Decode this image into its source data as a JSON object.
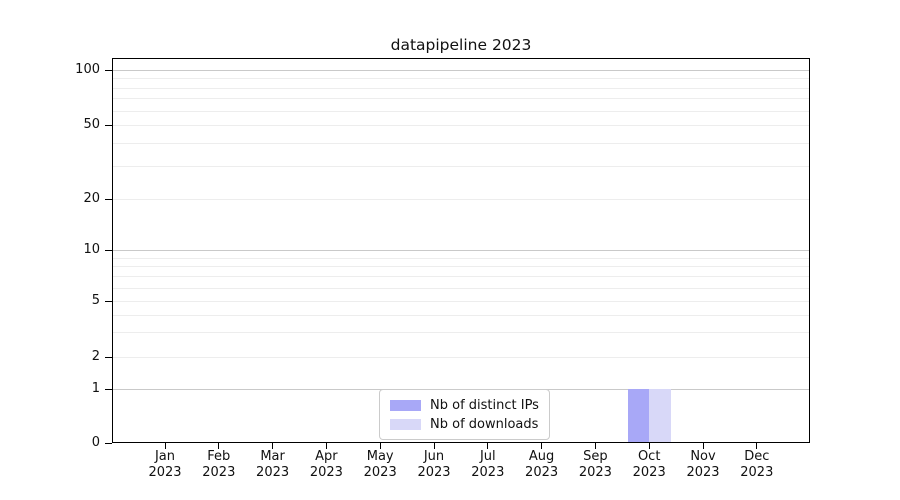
{
  "chart_data": {
    "type": "bar",
    "title": "datapipeline 2023",
    "categories": [
      "Jan 2023",
      "Feb 2023",
      "Mar 2023",
      "Apr 2023",
      "May 2023",
      "Jun 2023",
      "Jul 2023",
      "Aug 2023",
      "Sep 2023",
      "Oct 2023",
      "Nov 2023",
      "Dec 2023"
    ],
    "series": [
      {
        "name": "Nb of distinct IPs",
        "color": "#a8a8f7",
        "values": [
          0,
          0,
          0,
          0,
          0,
          0,
          0,
          0,
          0,
          1,
          0,
          0
        ]
      },
      {
        "name": "Nb of downloads",
        "color": "#d8d8f8",
        "values": [
          0,
          0,
          0,
          0,
          0,
          0,
          0,
          0,
          0,
          1,
          0,
          0
        ]
      }
    ],
    "yticks": [
      0,
      1,
      2,
      5,
      10,
      20,
      50,
      100
    ],
    "yscale": "symlog",
    "ylim": [
      0,
      117
    ],
    "xlabel": "",
    "ylabel": "",
    "grid": "horizontal-major-and-minor",
    "legend_position": "lower center"
  }
}
